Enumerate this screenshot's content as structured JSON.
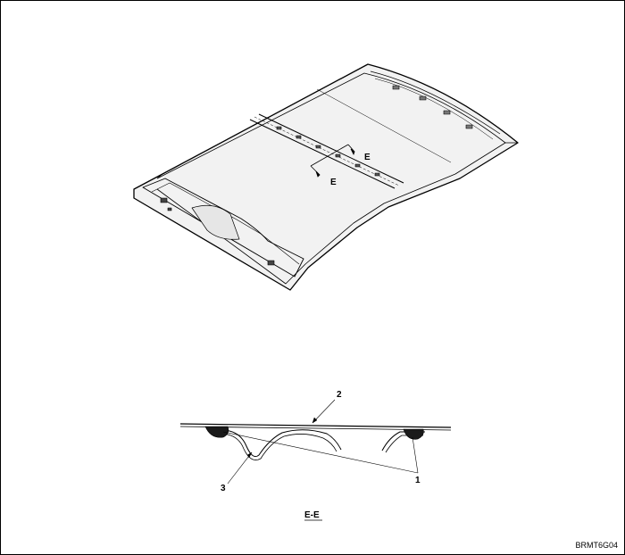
{
  "section_marks": {
    "upper": "E",
    "lower": "E"
  },
  "callouts": {
    "c1": "1",
    "c2": "2",
    "c3": "3"
  },
  "section_title": "E-E",
  "figure_code": "BRMT6G04"
}
